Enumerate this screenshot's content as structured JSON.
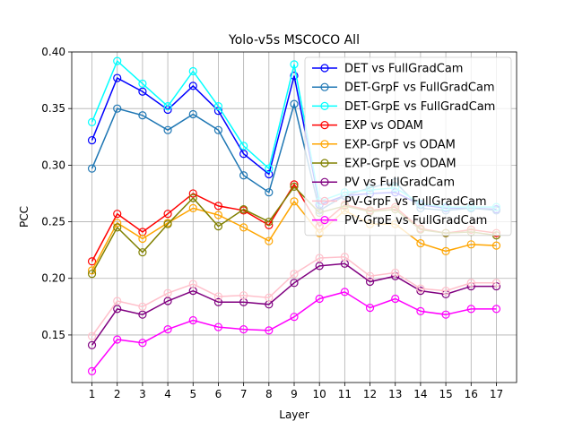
{
  "chart_data": {
    "type": "line",
    "title": "Yolo-v5s MSCOCO All",
    "xlabel": "Layer",
    "ylabel": "PCC",
    "x": [
      1,
      2,
      3,
      4,
      5,
      6,
      7,
      8,
      9,
      10,
      11,
      12,
      13,
      14,
      15,
      16,
      17
    ],
    "xlim": [
      0.2,
      17.8
    ],
    "ylim": [
      0.108,
      0.4
    ],
    "yticks": [
      "0.15",
      "0.20",
      "0.25",
      "0.30",
      "0.35",
      "0.40"
    ],
    "grid": true,
    "legend_position": "upper-right",
    "series": [
      {
        "name": "DET vs FullGradCam",
        "color": "#0000ff",
        "values": [
          0.322,
          0.377,
          0.365,
          0.349,
          0.37,
          0.348,
          0.31,
          0.292,
          0.379,
          0.265,
          0.273,
          0.275,
          0.276,
          0.265,
          0.262,
          0.262,
          0.261
        ]
      },
      {
        "name": "DET-GrpF vs FullGradCam",
        "color": "#1f77b4",
        "values": [
          0.297,
          0.35,
          0.344,
          0.331,
          0.345,
          0.331,
          0.291,
          0.276,
          0.354,
          0.26,
          0.273,
          0.28,
          0.285,
          0.262,
          0.26,
          0.262,
          0.26
        ]
      },
      {
        "name": "DET-GrpE vs FullGradCam",
        "color": "#00ffff",
        "values": [
          0.338,
          0.392,
          0.372,
          0.352,
          0.383,
          0.352,
          0.317,
          0.297,
          0.389,
          0.268,
          0.276,
          0.278,
          0.28,
          0.266,
          0.263,
          0.263,
          0.263
        ]
      },
      {
        "name": "EXP vs ODAM",
        "color": "#ff0000",
        "values": [
          0.215,
          0.257,
          0.241,
          0.257,
          0.275,
          0.264,
          0.26,
          0.247,
          0.283,
          0.246,
          0.265,
          0.26,
          0.263,
          0.244,
          0.24,
          0.243,
          0.24
        ]
      },
      {
        "name": "EXP-GrpF vs ODAM",
        "color": "#ffa500",
        "values": [
          0.207,
          0.249,
          0.235,
          0.249,
          0.262,
          0.256,
          0.245,
          0.233,
          0.268,
          0.24,
          0.26,
          0.248,
          0.248,
          0.231,
          0.224,
          0.23,
          0.229
        ]
      },
      {
        "name": "EXP-GrpE vs ODAM",
        "color": "#808000",
        "values": [
          0.204,
          0.245,
          0.223,
          0.248,
          0.271,
          0.246,
          0.261,
          0.25,
          0.281,
          0.258,
          0.264,
          0.259,
          0.261,
          0.243,
          0.24,
          0.241,
          0.238
        ]
      },
      {
        "name": "PV vs FullGradCam",
        "color": "#800080",
        "values": [
          0.141,
          0.173,
          0.168,
          0.18,
          0.189,
          0.179,
          0.179,
          0.177,
          0.196,
          0.211,
          0.213,
          0.197,
          0.202,
          0.189,
          0.186,
          0.193,
          0.193
        ]
      },
      {
        "name": "PV-GrpF vs FullGradCam",
        "color": "#ffc0cb",
        "values": [
          0.149,
          0.18,
          0.175,
          0.187,
          0.195,
          0.184,
          0.185,
          0.183,
          0.204,
          0.218,
          0.219,
          0.202,
          0.205,
          0.191,
          0.189,
          0.196,
          0.196
        ]
      },
      {
        "name": "PV-GrpE vs FullGradCam",
        "color": "#ff00ff",
        "values": [
          0.118,
          0.146,
          0.143,
          0.155,
          0.163,
          0.157,
          0.155,
          0.154,
          0.166,
          0.182,
          0.188,
          0.174,
          0.182,
          0.171,
          0.168,
          0.173,
          0.173
        ]
      }
    ]
  }
}
